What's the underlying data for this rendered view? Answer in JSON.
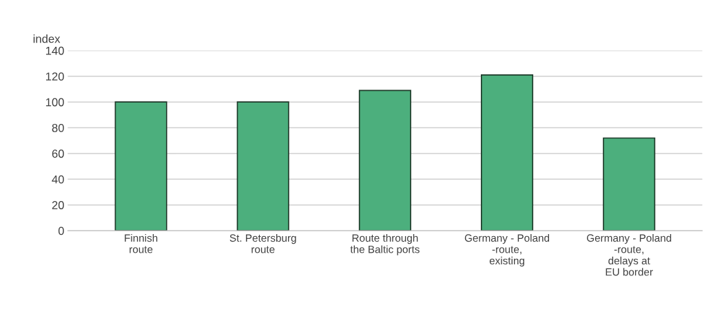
{
  "chart_data": {
    "type": "bar",
    "ylabel": "index",
    "categories": [
      "Finnish\nroute",
      "St. Petersburg\nroute",
      "Route through\nthe Baltic ports",
      "Germany - Poland\n-route,\nexisting",
      "Germany - Poland\n-route,\ndelays at\nEU border"
    ],
    "values": [
      100,
      100,
      109,
      121,
      72
    ],
    "color": "#4caf7d",
    "ylim": [
      0,
      140
    ],
    "yticks": [
      0,
      20,
      40,
      60,
      80,
      100,
      120,
      140
    ],
    "grid": "y"
  }
}
